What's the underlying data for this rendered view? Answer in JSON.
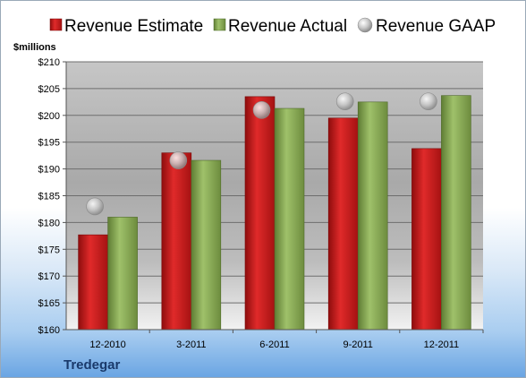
{
  "chart_data": {
    "type": "bar",
    "title": "",
    "company": "Tredegar",
    "ylabel": "$millions",
    "xlabel": "",
    "ylim": [
      160,
      210
    ],
    "yticks": [
      160,
      165,
      170,
      175,
      180,
      185,
      190,
      195,
      200,
      205,
      210
    ],
    "ytick_labels": [
      "$160",
      "$165",
      "$170",
      "$175",
      "$180",
      "$185",
      "$190",
      "$195",
      "$200",
      "$205",
      "$210"
    ],
    "categories": [
      "12-2010",
      "3-2011",
      "6-2011",
      "9-2011",
      "12-2011"
    ],
    "grid": true,
    "legend_position": "top",
    "series": [
      {
        "name": "Revenue Estimate",
        "type": "bar",
        "color": "#cc1a1a",
        "values": [
          177.7,
          193.0,
          203.5,
          199.5,
          193.8
        ]
      },
      {
        "name": "Revenue Actual",
        "type": "bar",
        "color": "#8cb05a",
        "values": [
          181.0,
          191.6,
          201.3,
          202.5,
          203.7
        ]
      },
      {
        "name": "Revenue GAAP",
        "type": "marker",
        "color": "#b8b8b8",
        "values": [
          183.0,
          191.6,
          201.0,
          202.6,
          202.6
        ]
      }
    ]
  }
}
